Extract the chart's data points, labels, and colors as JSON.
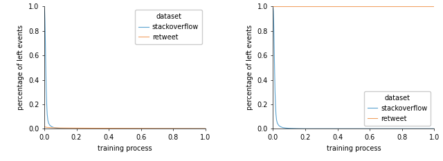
{
  "left_chart": {
    "xlabel": "training process",
    "ylabel": "percentage of left events",
    "xlim": [
      0,
      1.0
    ],
    "ylim": [
      0,
      1.0
    ],
    "legend_title": "dataset",
    "legend_labels": [
      "stackoverflow",
      "retweet"
    ],
    "legend_loc": "upper right",
    "so_x": [
      0.0,
      0.002,
      0.004,
      0.006,
      0.008,
      0.01,
      0.012,
      0.015,
      0.018,
      0.022,
      0.027,
      0.035,
      0.045,
      0.06,
      0.08,
      0.1,
      0.15,
      0.2,
      0.3,
      0.5,
      0.7,
      1.0
    ],
    "so_y": [
      0.985,
      0.96,
      0.88,
      0.75,
      0.6,
      0.45,
      0.32,
      0.2,
      0.12,
      0.07,
      0.045,
      0.028,
      0.018,
      0.01,
      0.006,
      0.004,
      0.002,
      0.001,
      0.001,
      0.001,
      0.001,
      0.001
    ],
    "rt_x": [
      0.0,
      0.005,
      0.01,
      0.02,
      0.05,
      0.1,
      0.3,
      0.5,
      0.7,
      1.0
    ],
    "rt_y": [
      0.018,
      0.015,
      0.013,
      0.011,
      0.009,
      0.007,
      0.005,
      0.004,
      0.003,
      0.002
    ],
    "so_color": "#5ba3d0",
    "rt_color": "#f0a060"
  },
  "right_chart": {
    "xlabel": "training process",
    "ylabel": "percentage of left events",
    "xlim": [
      0,
      1.0
    ],
    "ylim": [
      0,
      1.0
    ],
    "legend_title": "dataset",
    "legend_labels": [
      "stackoverflow",
      "retweet"
    ],
    "legend_loc": "lower right",
    "so_x": [
      0.0,
      0.002,
      0.004,
      0.006,
      0.008,
      0.01,
      0.012,
      0.015,
      0.018,
      0.022,
      0.027,
      0.035,
      0.045,
      0.06,
      0.08,
      0.1,
      0.15,
      0.2,
      0.3,
      0.5,
      0.7,
      1.0
    ],
    "so_y": [
      0.985,
      0.96,
      0.88,
      0.75,
      0.6,
      0.45,
      0.32,
      0.2,
      0.12,
      0.07,
      0.045,
      0.028,
      0.018,
      0.01,
      0.006,
      0.004,
      0.002,
      0.001,
      0.001,
      0.001,
      0.001,
      0.001
    ],
    "rt_x": [
      0.0,
      0.002,
      0.005,
      0.01,
      0.1,
      0.3,
      0.5,
      0.7,
      1.0
    ],
    "rt_y": [
      1.0,
      1.0,
      1.0,
      1.0,
      1.0,
      1.0,
      1.0,
      1.0,
      1.0
    ],
    "so_color": "#5ba3d0",
    "rt_color": "#f0a060"
  },
  "tick_labelsize": 7,
  "axis_labelsize": 7,
  "legend_fontsize": 7,
  "yticks": [
    0.0,
    0.2,
    0.4,
    0.6,
    0.8,
    1.0
  ],
  "xticks": [
    0.0,
    0.2,
    0.4,
    0.6,
    0.8,
    1.0
  ]
}
